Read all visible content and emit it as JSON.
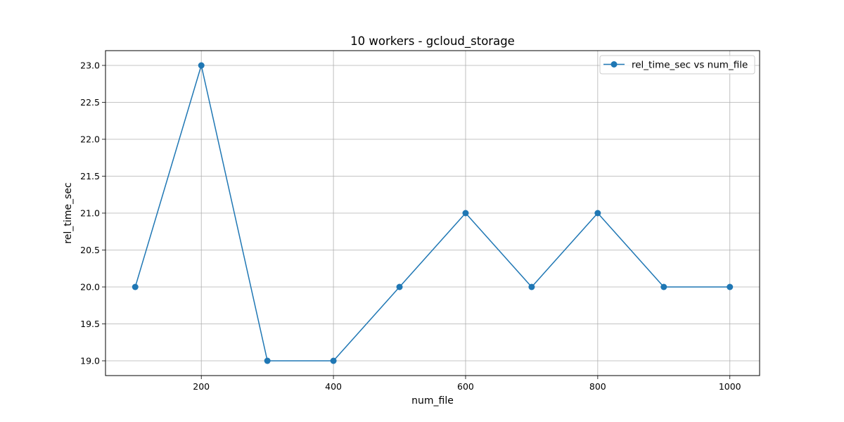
{
  "chart_data": {
    "type": "line",
    "title": "10 workers - gcloud_storage",
    "xlabel": "num_file",
    "ylabel": "rel_time_sec",
    "xlim": [
      55,
      1045
    ],
    "ylim": [
      18.8,
      23.2
    ],
    "xticks": [
      200,
      400,
      600,
      800,
      1000
    ],
    "xtick_labels": [
      "200",
      "400",
      "600",
      "800",
      "1000"
    ],
    "yticks": [
      19.0,
      19.5,
      20.0,
      20.5,
      21.0,
      21.5,
      22.0,
      22.5,
      23.0
    ],
    "ytick_labels": [
      "19.0",
      "19.5",
      "20.0",
      "20.5",
      "21.0",
      "21.5",
      "22.0",
      "22.5",
      "23.0"
    ],
    "grid": true,
    "legend_position": "top-right",
    "series": [
      {
        "name": "rel_time_sec vs num_file",
        "color": "#1f77b4",
        "marker": "circle",
        "x": [
          100,
          200,
          300,
          400,
          500,
          600,
          700,
          800,
          900,
          1000
        ],
        "y": [
          20,
          23,
          19,
          19,
          20,
          21,
          20,
          21,
          20,
          20
        ]
      }
    ]
  }
}
